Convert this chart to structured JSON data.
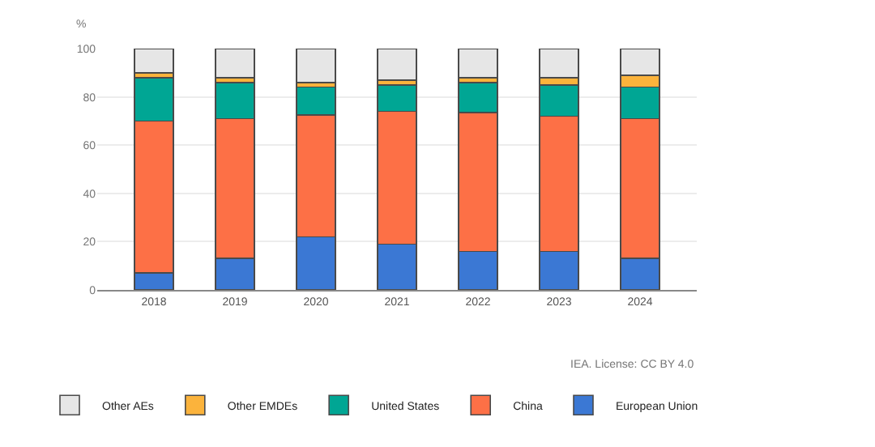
{
  "chart_data": {
    "type": "bar",
    "stacked": true,
    "ylabel": "%",
    "categories": [
      "2018",
      "2019",
      "2020",
      "2021",
      "2022",
      "2023",
      "2024"
    ],
    "series": [
      {
        "name": "European Union",
        "color": "#3b78d4",
        "values": [
          7,
          13,
          22,
          19,
          16,
          16,
          13
        ]
      },
      {
        "name": "China",
        "color": "#fd7046",
        "values": [
          63,
          58,
          50.5,
          55,
          57.5,
          56,
          58
        ]
      },
      {
        "name": "United States",
        "color": "#00a694",
        "values": [
          18,
          15,
          11.5,
          11,
          12.5,
          13,
          13
        ]
      },
      {
        "name": "Other EMDEs",
        "color": "#fbb33c",
        "values": [
          2,
          2,
          2,
          2,
          2,
          3,
          5
        ]
      },
      {
        "name": "Other AEs",
        "color": "#e6e6e6",
        "values": [
          10,
          12,
          14,
          13,
          12,
          12,
          11
        ]
      }
    ],
    "ylim": [
      0,
      100
    ],
    "yticks": [
      0,
      20,
      40,
      60,
      80,
      100
    ],
    "grid": "y",
    "legend": "bottom left",
    "annotations": [
      "IEA. License: CC BY 4.0"
    ]
  }
}
